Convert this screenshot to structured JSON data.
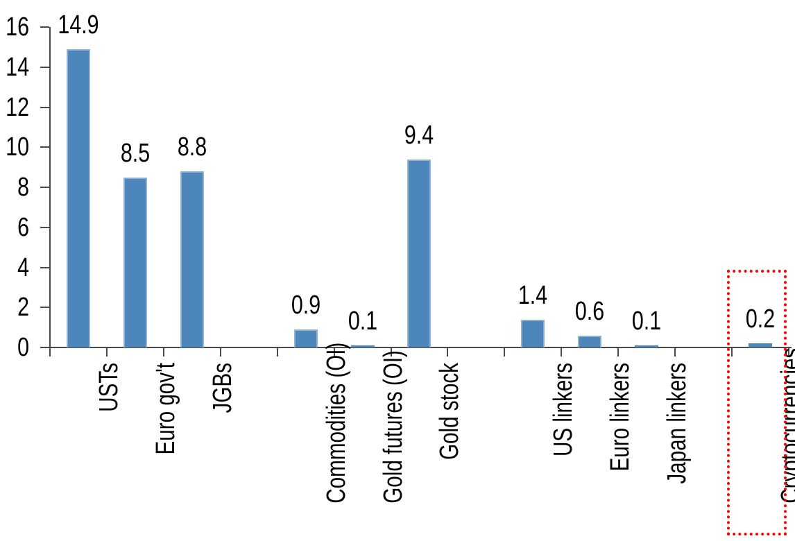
{
  "chart_data": {
    "type": "bar",
    "title": "",
    "xlabel": "",
    "ylabel": "",
    "categories": [
      "USTs",
      "Euro gov't",
      "JGBs",
      "",
      "Commodities (OI)",
      "Gold futures (OI)",
      "Gold stock",
      "",
      "US linkers",
      "Euro linkers",
      "Japan linkers",
      "",
      "Cryptocurrencies"
    ],
    "values": [
      14.9,
      8.5,
      8.8,
      null,
      0.9,
      0.1,
      9.4,
      null,
      1.4,
      0.6,
      0.1,
      null,
      0.2
    ],
    "bar_labels": [
      "14.9",
      "8.5",
      "8.8",
      "",
      "0.9",
      "0.1",
      "9.4",
      "",
      "1.4",
      "0.6",
      "0.1",
      "",
      "0.2"
    ],
    "ylim": [
      0,
      16
    ],
    "yticks": [
      0,
      2,
      4,
      6,
      8,
      10,
      12,
      14,
      16
    ],
    "grid": false,
    "legend": false,
    "category_label_rotation": -90,
    "bar_color": "#4C86BA",
    "bar_edge_color": "#8FB2D4",
    "axis_color": "#4a4a4a",
    "label_color": "#000000",
    "highlight": {
      "category": "Cryptocurrencies",
      "style": "dotted-rectangle",
      "color": "#FF0000"
    }
  }
}
